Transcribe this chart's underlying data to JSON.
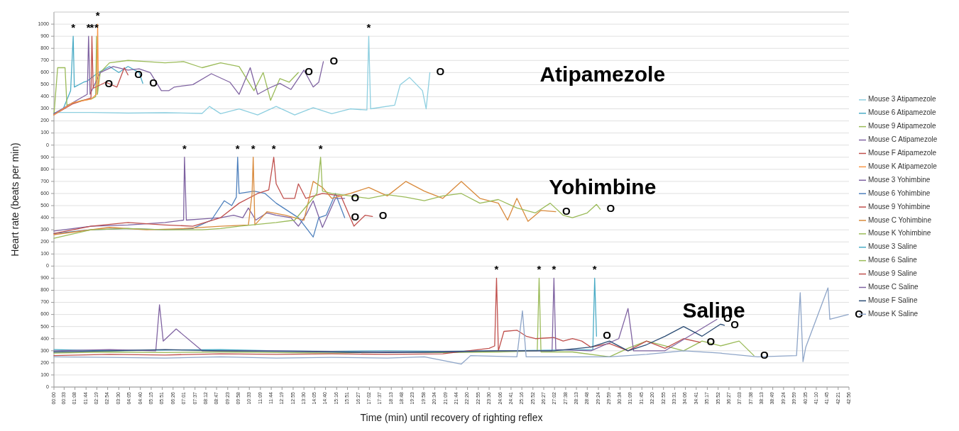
{
  "chart_data": [
    {
      "type": "line",
      "xlim": [
        0,
        42.933
      ],
      "ylim": [
        0,
        1100
      ],
      "tick_labels": "y",
      "grid": "y",
      "legend": "right",
      "yticks": [
        0,
        100,
        200,
        300,
        400,
        500,
        600,
        700,
        800,
        900,
        1000
      ],
      "series": [
        {
          "name": "Mouse 3 Atipamezole",
          "color": "#8ecfe0",
          "x": [
            0,
            2,
            4,
            6,
            8,
            8.4,
            9,
            10,
            11,
            12,
            13,
            14,
            15,
            16,
            16.9,
            17.0,
            17.1,
            18.4,
            18.7,
            19.2,
            19.9,
            20.1,
            20.3
          ],
          "values": [
            270,
            270,
            265,
            268,
            262,
            320,
            260,
            300,
            250,
            320,
            250,
            310,
            260,
            300,
            290,
            900,
            300,
            330,
            500,
            560,
            450,
            300,
            600
          ]
        },
        {
          "name": "Mouse 6 Atipamezole",
          "color": "#4bacc6",
          "x": [
            0,
            0.5,
            0.9,
            1.04,
            1.1,
            1.6,
            1.8,
            2.4,
            3.0,
            3.5,
            4.0,
            4.6,
            4.8
          ],
          "values": [
            260,
            300,
            450,
            900,
            480,
            520,
            530,
            600,
            650,
            600,
            650,
            600,
            510
          ]
        },
        {
          "name": "Mouse 9 Atipamezole",
          "color": "#9bbb59",
          "x": [
            0,
            0.2,
            0.6,
            0.7,
            1.5,
            2,
            2.25,
            2.3,
            2.35,
            2.5,
            3,
            4,
            5,
            6,
            7,
            8,
            9,
            10,
            10.8,
            11.3,
            11.7,
            12.2,
            12.7,
            13.2
          ],
          "values": [
            250,
            640,
            640,
            330,
            370,
            380,
            400,
            900,
            420,
            600,
            680,
            700,
            690,
            680,
            690,
            640,
            680,
            650,
            450,
            600,
            370,
            550,
            520,
            600
          ]
        },
        {
          "name": "Mouse C Atipamezole",
          "color": "#8064a2",
          "x": [
            0,
            1,
            1.8,
            1.87,
            1.95,
            2.5,
            3.2,
            4,
            4.6,
            5.2,
            5.8,
            6.2,
            6.5,
            7.5,
            8.5,
            9.5,
            10,
            10.6,
            11,
            11.6,
            12.2,
            12.8,
            13.5,
            14,
            14.3,
            14.55
          ],
          "values": [
            260,
            350,
            420,
            900,
            420,
            600,
            650,
            620,
            630,
            600,
            450,
            450,
            480,
            500,
            590,
            520,
            420,
            640,
            420,
            470,
            510,
            460,
            620,
            480,
            520,
            690
          ]
        },
        {
          "name": "Mouse F Atipamezole",
          "color": "#c0504d",
          "x": [
            0,
            1,
            2,
            2.05,
            2.12,
            2.8,
            3.4,
            3.8,
            4.0
          ],
          "values": [
            250,
            340,
            390,
            900,
            470,
            520,
            480,
            640,
            580
          ]
        },
        {
          "name": "Mouse K Atipamezole",
          "color": "#f79646",
          "x": [
            0,
            1,
            2,
            2.3,
            2.36,
            2.4
          ],
          "values": [
            250,
            350,
            380,
            420,
            1000,
            500
          ]
        }
      ],
      "annotations": [
        "Atipamezole",
        {
          "text": "*",
          "x": 1.04,
          "y": 900
        },
        {
          "text": "*",
          "x": 1.87,
          "y": 900
        },
        {
          "text": "*",
          "x": 2.05,
          "y": 900
        },
        {
          "text": "*",
          "x": 2.3,
          "y": 900
        },
        {
          "text": "*",
          "x": 2.36,
          "y": 1000
        },
        {
          "text": "*",
          "x": 17.0,
          "y": 900
        },
        {
          "text": "O",
          "x": 2.4,
          "y": 500
        },
        {
          "text": "O",
          "x": 4.0,
          "y": 580
        },
        {
          "text": "O",
          "x": 4.8,
          "y": 510
        },
        {
          "text": "O",
          "x": 13.2,
          "y": 600
        },
        {
          "text": "O",
          "x": 14.55,
          "y": 690
        },
        {
          "text": "O",
          "x": 20.3,
          "y": 600
        }
      ]
    },
    {
      "type": "line",
      "xlim": [
        0,
        42.933
      ],
      "ylim": [
        0,
        1000
      ],
      "tick_labels": "y",
      "grid": "y",
      "legend": "right",
      "ylabel": "Heart rate (beats per min)",
      "yticks": [
        0,
        100,
        200,
        300,
        400,
        500,
        600,
        700,
        800,
        900
      ],
      "series": [
        {
          "name": "Mouse 3 Yohimbine",
          "color": "#7e62a1",
          "x": [
            0,
            2,
            4,
            6,
            7.0,
            7.05,
            7.15,
            8,
            9,
            9.7,
            10.2,
            10.5,
            10.9,
            11.5,
            12,
            12.8,
            13.2,
            13.6,
            14.0,
            14.5,
            15.2,
            15.7
          ],
          "values": [
            290,
            330,
            340,
            360,
            380,
            900,
            380,
            390,
            400,
            420,
            400,
            480,
            380,
            440,
            420,
            400,
            330,
            420,
            540,
            320,
            560,
            560
          ]
        },
        {
          "name": "Mouse 6 Yohimbine",
          "color": "#4f81bd",
          "x": [
            0,
            2,
            4,
            6,
            7.5,
            8.5,
            9.2,
            9.6,
            9.85,
            9.92,
            10.0,
            10.8,
            11.4,
            12.0,
            12.6,
            13.2,
            13.7,
            14.0,
            14.3,
            14.7,
            15.2,
            15.7
          ],
          "values": [
            270,
            300,
            310,
            300,
            310,
            380,
            540,
            500,
            570,
            900,
            600,
            620,
            600,
            520,
            460,
            400,
            300,
            240,
            400,
            420,
            600,
            400
          ]
        },
        {
          "name": "Mouse 9 Yohimbine",
          "color": "#c0504d",
          "x": [
            0,
            2,
            4,
            6,
            7.5,
            9,
            10,
            11,
            11.6,
            11.87,
            12.0,
            12.4,
            13.0,
            13.2,
            13.6,
            14.5,
            15.5,
            16.2,
            16.8,
            17.2
          ],
          "values": [
            270,
            330,
            360,
            340,
            330,
            400,
            520,
            600,
            630,
            900,
            680,
            560,
            560,
            680,
            560,
            600,
            580,
            330,
            420,
            410
          ]
        },
        {
          "name": "Mouse C Yohimbine",
          "color": "#d98a3c",
          "x": [
            0,
            3,
            5,
            7,
            9,
            10.5,
            10.7,
            10.76,
            10.85,
            11.5,
            12.5,
            13.5,
            14,
            14.5,
            15,
            16,
            17,
            18,
            19,
            20,
            21,
            22,
            23,
            24,
            24.5,
            25,
            25.6,
            26.3,
            27.1
          ],
          "values": [
            260,
            320,
            300,
            310,
            330,
            340,
            600,
            900,
            340,
            450,
            420,
            380,
            700,
            650,
            560,
            600,
            650,
            580,
            700,
            620,
            560,
            700,
            560,
            520,
            380,
            560,
            370,
            460,
            450
          ]
        },
        {
          "name": "Mouse K Yohimbine",
          "color": "#9bbb59",
          "x": [
            0,
            2,
            4,
            6,
            8,
            9,
            10,
            12,
            13,
            14.2,
            14.4,
            14.5,
            15,
            16,
            17,
            18,
            19,
            20,
            21,
            22,
            23,
            24,
            25,
            26,
            26.8,
            27.5,
            28,
            28.8,
            29.3,
            29.5
          ],
          "values": [
            230,
            300,
            310,
            300,
            300,
            310,
            330,
            360,
            380,
            600,
            900,
            620,
            600,
            580,
            560,
            590,
            570,
            540,
            580,
            600,
            520,
            550,
            480,
            440,
            520,
            420,
            400,
            440,
            510,
            470
          ]
        }
      ],
      "annotations": [
        "Yohimbine",
        {
          "text": "*",
          "x": 7.05,
          "y": 900
        },
        {
          "text": "*",
          "x": 9.92,
          "y": 900
        },
        {
          "text": "*",
          "x": 10.76,
          "y": 900
        },
        {
          "text": "*",
          "x": 11.87,
          "y": 900
        },
        {
          "text": "*",
          "x": 14.4,
          "y": 900
        },
        {
          "text": "O",
          "x": 15.7,
          "y": 560
        },
        {
          "text": "O",
          "x": 15.7,
          "y": 400
        },
        {
          "text": "O",
          "x": 17.2,
          "y": 410
        },
        {
          "text": "O",
          "x": 27.1,
          "y": 450
        },
        {
          "text": "O",
          "x": 29.5,
          "y": 470
        }
      ]
    },
    {
      "type": "line",
      "xlim": [
        0,
        42.933
      ],
      "ylim": [
        0,
        1000
      ],
      "grid": "y",
      "legend": "right",
      "xlabel": "Time (min) until recovery of righting reflex",
      "yticks": [
        0,
        100,
        200,
        300,
        400,
        500,
        600,
        700,
        800,
        900
      ],
      "xticks": [
        {
          "value": 0,
          "label": "00:00"
        },
        {
          "value": 0.55,
          "label": "00:33"
        },
        {
          "value": 1.133,
          "label": "01:08"
        },
        {
          "value": 1.733,
          "label": "01:44"
        },
        {
          "value": 2.317,
          "label": "02:19"
        },
        {
          "value": 2.9,
          "label": "02:54"
        },
        {
          "value": 3.5,
          "label": "03:30"
        },
        {
          "value": 4.083,
          "label": "04:05"
        },
        {
          "value": 4.667,
          "label": "04:40"
        },
        {
          "value": 5.25,
          "label": "05:15"
        },
        {
          "value": 5.85,
          "label": "05:51"
        },
        {
          "value": 6.433,
          "label": "06:26"
        },
        {
          "value": 7.017,
          "label": "07:01"
        },
        {
          "value": 7.617,
          "label": "07:37"
        },
        {
          "value": 8.2,
          "label": "08:12"
        },
        {
          "value": 8.783,
          "label": "08:47"
        },
        {
          "value": 9.383,
          "label": "09:23"
        },
        {
          "value": 9.967,
          "label": "09:58"
        },
        {
          "value": 10.55,
          "label": "10:33"
        },
        {
          "value": 11.15,
          "label": "11:09"
        },
        {
          "value": 11.733,
          "label": "11:44"
        },
        {
          "value": 12.317,
          "label": "12:19"
        },
        {
          "value": 12.917,
          "label": "12:55"
        },
        {
          "value": 13.5,
          "label": "13:30"
        },
        {
          "value": 14.083,
          "label": "14:05"
        },
        {
          "value": 14.667,
          "label": "14:40"
        },
        {
          "value": 15.267,
          "label": "15:16"
        },
        {
          "value": 15.85,
          "label": "15:51"
        },
        {
          "value": 16.45,
          "label": "16:27"
        },
        {
          "value": 17.033,
          "label": "17:02"
        },
        {
          "value": 17.617,
          "label": "17:37"
        },
        {
          "value": 18.217,
          "label": "18:13"
        },
        {
          "value": 18.8,
          "label": "18:48"
        },
        {
          "value": 19.383,
          "label": "19:23"
        },
        {
          "value": 19.967,
          "label": "19:58"
        },
        {
          "value": 20.567,
          "label": "20:34"
        },
        {
          "value": 21.15,
          "label": "21:09"
        },
        {
          "value": 21.733,
          "label": "21:44"
        },
        {
          "value": 22.333,
          "label": "22:20"
        },
        {
          "value": 22.917,
          "label": "22:55"
        },
        {
          "value": 23.5,
          "label": "23:30"
        },
        {
          "value": 24.1,
          "label": "24:06"
        },
        {
          "value": 24.683,
          "label": "24:41"
        },
        {
          "value": 25.267,
          "label": "25:16"
        },
        {
          "value": 25.867,
          "label": "25:52"
        },
        {
          "value": 26.45,
          "label": "26:27"
        },
        {
          "value": 27.033,
          "label": "27:02"
        },
        {
          "value": 27.633,
          "label": "27:38"
        },
        {
          "value": 28.217,
          "label": "28:13"
        },
        {
          "value": 28.8,
          "label": "28:48"
        },
        {
          "value": 29.4,
          "label": "29:24"
        },
        {
          "value": 29.983,
          "label": "29:59"
        },
        {
          "value": 30.567,
          "label": "30:34"
        },
        {
          "value": 31.15,
          "label": "31:09"
        },
        {
          "value": 31.75,
          "label": "31:45"
        },
        {
          "value": 32.333,
          "label": "32:20"
        },
        {
          "value": 32.917,
          "label": "32:55"
        },
        {
          "value": 33.517,
          "label": "33:31"
        },
        {
          "value": 34.1,
          "label": "34:06"
        },
        {
          "value": 34.683,
          "label": "34:41"
        },
        {
          "value": 35.283,
          "label": "35:17"
        },
        {
          "value": 35.867,
          "label": "35:52"
        },
        {
          "value": 36.45,
          "label": "36:27"
        },
        {
          "value": 37.05,
          "label": "37:03"
        },
        {
          "value": 37.633,
          "label": "37:38"
        },
        {
          "value": 38.217,
          "label": "38:13"
        },
        {
          "value": 38.817,
          "label": "38:49"
        },
        {
          "value": 39.4,
          "label": "39:24"
        },
        {
          "value": 39.983,
          "label": "39:59"
        },
        {
          "value": 40.583,
          "label": "40:35"
        },
        {
          "value": 41.167,
          "label": "41:10"
        },
        {
          "value": 41.75,
          "label": "41:45"
        },
        {
          "value": 42.35,
          "label": "42:21"
        },
        {
          "value": 42.933,
          "label": "42:56"
        }
      ],
      "series": [
        {
          "name": "Mouse 3 Saline",
          "color": "#4bacc6",
          "x": [
            0,
            3,
            6,
            9,
            12,
            15,
            18,
            21,
            24,
            27,
            29.1,
            29.2,
            29.3
          ],
          "values": [
            310,
            300,
            305,
            310,
            300,
            295,
            300,
            295,
            300,
            305,
            310,
            900,
            420
          ]
        },
        {
          "name": "Mouse 6 Saline",
          "color": "#9bbb59",
          "x": [
            0,
            3,
            6,
            9,
            12,
            15,
            18,
            21,
            24,
            26.1,
            26.2,
            26.3,
            28,
            30,
            31,
            32,
            33,
            34,
            35,
            36,
            37,
            37.8
          ],
          "values": [
            280,
            290,
            285,
            290,
            285,
            280,
            290,
            285,
            290,
            300,
            900,
            290,
            290,
            250,
            320,
            380,
            340,
            300,
            380,
            340,
            380,
            260
          ]
        },
        {
          "name": "Mouse 9 Saline",
          "color": "#c0504d",
          "x": [
            0,
            3,
            6,
            9,
            12,
            15,
            18,
            21,
            23.5,
            23.8,
            23.9,
            24.0,
            24.3,
            25,
            25.5,
            26,
            27,
            27.5,
            28,
            28.5,
            29,
            30,
            31,
            32,
            33,
            34,
            34.9
          ],
          "values": [
            260,
            270,
            265,
            275,
            270,
            275,
            270,
            275,
            320,
            340,
            900,
            300,
            460,
            470,
            420,
            400,
            410,
            380,
            400,
            380,
            330,
            360,
            300,
            380,
            320,
            400,
            370
          ]
        },
        {
          "name": "Mouse C Saline",
          "color": "#8064a2",
          "x": [
            0,
            3,
            5.5,
            5.7,
            5.9,
            6.6,
            8,
            12,
            16,
            20,
            24,
            26.9,
            27.0,
            27.1,
            29,
            30.5,
            31,
            31.3,
            33,
            35.8
          ],
          "values": [
            300,
            310,
            300,
            680,
            380,
            480,
            300,
            300,
            290,
            290,
            300,
            300,
            900,
            310,
            300,
            400,
            650,
            300,
            300,
            560
          ]
        },
        {
          "name": "Mouse F Saline",
          "color": "#2c4d75",
          "x": [
            0,
            3,
            6,
            9,
            12,
            15,
            18,
            21,
            24,
            27,
            29,
            30,
            31,
            32,
            33,
            34,
            35,
            36,
            36.2
          ],
          "values": [
            290,
            300,
            310,
            300,
            295,
            290,
            285,
            290,
            300,
            300,
            330,
            380,
            300,
            350,
            420,
            500,
            420,
            520,
            510
          ]
        },
        {
          "name": "Mouse K Saline",
          "color": "#8ea5c8",
          "x": [
            0,
            3,
            6,
            9,
            12,
            15,
            18,
            20,
            22,
            22.5,
            25,
            25.3,
            25.5,
            28,
            30,
            32,
            34,
            36,
            38,
            40.1,
            40.3,
            40.45,
            40.6,
            41.8,
            41.9,
            42.9
          ],
          "values": [
            250,
            245,
            240,
            250,
            240,
            245,
            240,
            250,
            190,
            260,
            250,
            630,
            250,
            250,
            250,
            270,
            300,
            280,
            250,
            260,
            780,
            210,
            330,
            820,
            560,
            600
          ]
        }
      ],
      "annotations": [
        "Saline",
        {
          "text": "*",
          "x": 23.9,
          "y": 900
        },
        {
          "text": "*",
          "x": 26.2,
          "y": 900
        },
        {
          "text": "*",
          "x": 27.0,
          "y": 900
        },
        {
          "text": "*",
          "x": 29.2,
          "y": 900
        },
        {
          "text": "O",
          "x": 29.3,
          "y": 420
        },
        {
          "text": "O",
          "x": 34.9,
          "y": 370
        },
        {
          "text": "O",
          "x": 35.8,
          "y": 560
        },
        {
          "text": "O",
          "x": 36.2,
          "y": 510
        },
        {
          "text": "O",
          "x": 37.8,
          "y": 260
        },
        {
          "text": "O",
          "x": 42.9,
          "y": 600
        }
      ]
    }
  ]
}
